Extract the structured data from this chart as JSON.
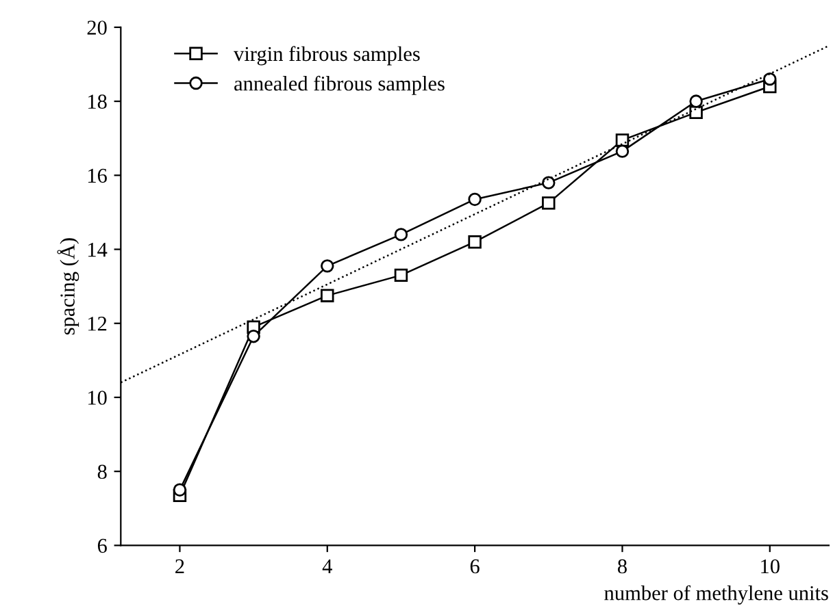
{
  "chart_data": {
    "type": "line",
    "xlabel": "number of methylene units",
    "ylabel": "spacing (Å)",
    "x": [
      2,
      3,
      4,
      5,
      6,
      7,
      8,
      9,
      10
    ],
    "series": [
      {
        "name": "virgin fibrous samples",
        "color": "#000000",
        "marker": "square",
        "values": [
          7.35,
          11.9,
          12.75,
          13.3,
          14.2,
          15.25,
          16.95,
          17.7,
          18.4
        ]
      },
      {
        "name": "annealed fibrous samples",
        "color": "#000000",
        "marker": "circle",
        "values": [
          7.5,
          11.65,
          13.55,
          14.4,
          15.35,
          15.8,
          16.65,
          18.0,
          18.6
        ]
      },
      {
        "color": "#000000",
        "marker": "none",
        "line_style": "dotted",
        "x": [
          1.2,
          10.8
        ],
        "values": [
          10.4,
          19.5
        ]
      }
    ],
    "xlim": [
      1.2,
      10.8
    ],
    "ylim": [
      6,
      20
    ],
    "xticks": [
      2,
      4,
      6,
      8,
      10
    ],
    "yticks": [
      6,
      8,
      10,
      12,
      14,
      16,
      18,
      20
    ],
    "grid": false,
    "legend": "top left"
  }
}
